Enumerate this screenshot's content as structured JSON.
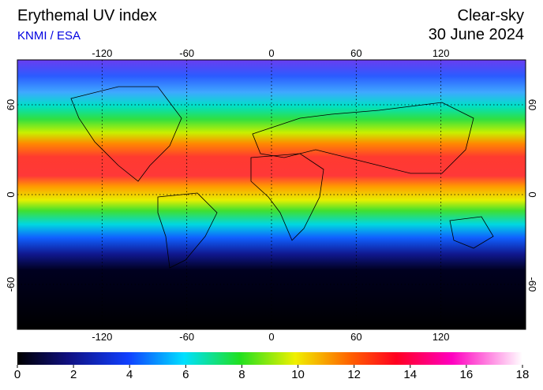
{
  "header": {
    "title": "Erythemal UV index",
    "source": "KNMI / ESA",
    "mode": "Clear-sky",
    "date": "30 June 2024"
  },
  "map": {
    "lon_range": [
      -180,
      180
    ],
    "lat_range": [
      -90,
      90
    ],
    "lon_ticks": [
      -120,
      -60,
      0,
      60,
      120
    ],
    "lat_ticks": [
      60,
      0,
      -60
    ]
  },
  "colorbar": {
    "range": [
      0,
      18
    ],
    "ticks": [
      0,
      2,
      4,
      6,
      8,
      10,
      12,
      14,
      16,
      18
    ]
  }
}
